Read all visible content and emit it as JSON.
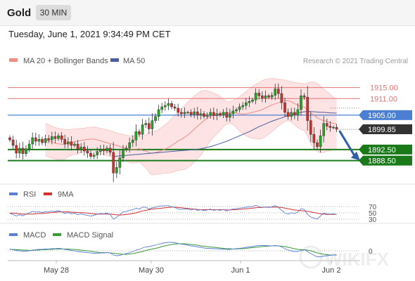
{
  "header": {
    "title": "Gold",
    "timeframe": "30 MIN"
  },
  "datetime": "Tuesday, June 1, 2021 9:34:49 PM CET",
  "credit": "Research © 2021 Trading Central",
  "watermark": "WIKIFX",
  "colors": {
    "resistance": "#e57373",
    "pivot": "#4a7fd4",
    "support": "#1a7a1a",
    "current": "#333333",
    "band_fill": "#fde3e3",
    "ma20": "#f28b82",
    "ma50": "#4a5c9e",
    "candle_up": "#26a526",
    "candle_down": "#d32f2f",
    "rsi": "#5b7fd6",
    "rsi_ma": "#d32f2f",
    "macd": "#5b7fd6",
    "macd_signal": "#3a9a3a",
    "arrow": "#2e5fa8"
  },
  "chart_data": [
    {
      "type": "candlestick",
      "legend": [
        "MA 20 + Bollinger Bands",
        "MA 50"
      ],
      "x_labels": [
        "May 28",
        "May 30",
        "Jun 1",
        "Jun 2"
      ],
      "levels": [
        {
          "value": 1915.0,
          "label": "1915.00",
          "kind": "resistance"
        },
        {
          "value": 1911.0,
          "label": "1911.00",
          "kind": "resistance"
        },
        {
          "value": 1905.0,
          "label": "1905.00",
          "kind": "pivot"
        },
        {
          "value": 1899.85,
          "label": "1899.85",
          "kind": "current"
        },
        {
          "value": 1892.5,
          "label": "1892.50",
          "kind": "support"
        },
        {
          "value": 1888.5,
          "label": "1888.50",
          "kind": "support"
        }
      ],
      "ylim": [
        1881,
        1920
      ],
      "close": [
        1896.0,
        1894.0,
        1891.2,
        1893.0,
        1891.0,
        1892.8,
        1894.5,
        1896.8,
        1895.5,
        1896.2,
        1895.0,
        1896.5,
        1896.0,
        1897.2,
        1896.5,
        1897.5,
        1896.2,
        1894.5,
        1895.3,
        1894.0,
        1894.5,
        1892.5,
        1893.4,
        1892.0,
        1891.2,
        1890.0,
        1890.5,
        1891.8,
        1892.5,
        1892.0,
        1893.0,
        1891.5,
        1884.0,
        1886.0,
        1889.5,
        1892.5,
        1893.0,
        1895.0,
        1896.0,
        1899.0,
        1898.0,
        1901.5,
        1902.0,
        1900.0,
        1903.0,
        1904.5,
        1907.0,
        1908.0,
        1908.5,
        1909.2,
        1908.0,
        1907.5,
        1906.0,
        1905.5,
        1906.0,
        1906.0,
        1905.2,
        1906.2,
        1905.0,
        1905.5,
        1904.5,
        1905.0,
        1906.0,
        1904.8,
        1905.5,
        1905.0,
        1906.0,
        1904.2,
        1905.5,
        1906.5,
        1907.0,
        1908.0,
        1908.5,
        1909.5,
        1910.0,
        1910.5,
        1913.0,
        1912.0,
        1911.2,
        1912.0,
        1911.5,
        1912.2,
        1914.5,
        1912.8,
        1909.5,
        1906.0,
        1904.5,
        1906.0,
        1905.0,
        1907.0,
        1912.0,
        1911.5,
        1903.0,
        1898.0,
        1895.0,
        1893.5,
        1897.5,
        1902.0,
        1901.0,
        1900.5,
        1900.6,
        1899.85
      ],
      "ma20": [
        1896.1,
        1895.6,
        1895.2,
        1894.8,
        1894.6,
        1894.4,
        1894.4,
        1894.8,
        1895.1,
        1895.4,
        1895.5,
        1895.8,
        1896.0,
        1896.2,
        1896.3,
        1896.3,
        1896.0,
        1895.7,
        1895.3,
        1895.0,
        1894.7,
        1894.3,
        1894.0,
        1893.6,
        1893.3,
        1893.0,
        1892.6,
        1892.5,
        1892.6,
        1892.8,
        1892.2,
        1891.9,
        1891.4,
        1891.2,
        1891.4,
        1891.7,
        1892.2,
        1892.7,
        1893.2,
        1894.0,
        1894.8,
        1895.6,
        1896.2,
        1896.9,
        1897.8,
        1898.8,
        1899.9,
        1901.0,
        1902.0,
        1903.0,
        1903.9,
        1904.6,
        1905.0,
        1905.3,
        1905.6,
        1905.7,
        1905.8,
        1905.9,
        1906.0,
        1905.7,
        1905.5,
        1905.4,
        1905.5,
        1905.7,
        1906.0,
        1906.3,
        1906.6,
        1907.0,
        1907.6,
        1908.1,
        1908.7,
        1909.1,
        1909.5,
        1909.9,
        1910.2,
        1910.2,
        1909.8,
        1909.2,
        1908.6,
        1908.1,
        1907.9,
        1906.9,
        1905.8,
        1904.9,
        1904.1,
        1903.4,
        1903.0,
        1902.7,
        1902.3,
        1902.0,
        1901.8
      ],
      "ma50": [
        1890.0,
        1890.1,
        1890.2,
        1890.3,
        1890.4,
        1890.5,
        1890.6,
        1890.7,
        1890.8,
        1890.9,
        1891.0,
        1891.1,
        1891.2,
        1891.3,
        1891.4,
        1891.5,
        1891.6,
        1891.7,
        1891.8,
        1891.9,
        1892.0,
        1892.1,
        1892.2,
        1892.3,
        1892.4,
        1892.5,
        1892.6,
        1892.8,
        1893.0,
        1893.3,
        1893.6,
        1893.9,
        1894.3,
        1894.7,
        1895.1,
        1895.5,
        1896.0,
        1896.5,
        1897.0,
        1897.5,
        1898.0,
        1898.5,
        1899.0,
        1899.6,
        1900.2,
        1900.8,
        1901.3,
        1901.8,
        1902.3,
        1902.8,
        1903.2,
        1903.6,
        1904.0,
        1904.4,
        1904.8,
        1905.2,
        1905.5,
        1905.8,
        1906.0,
        1906.2,
        1906.3,
        1906.3,
        1906.2,
        1906.1,
        1906.0,
        1906.0,
        1905.9,
        1905.8,
        1905.8,
        1905.7
      ],
      "bb_upper": [
        1902.0,
        1901.5,
        1901.0,
        1900.5,
        1900.2,
        1900.0,
        1899.8,
        1899.7,
        1899.8,
        1900.0,
        1900.1,
        1900.2,
        1900.3,
        1900.5,
        1900.6,
        1900.7,
        1900.5,
        1900.2,
        1900.0,
        1899.7,
        1899.4,
        1899.0,
        1898.6,
        1898.3,
        1898.0,
        1897.7,
        1897.5,
        1897.4,
        1897.5,
        1897.6,
        1897.4,
        1897.8,
        1898.6,
        1899.1,
        1899.3,
        1899.8,
        1900.6,
        1901.5,
        1902.5,
        1903.8,
        1905.0,
        1906.3,
        1907.3,
        1908.5,
        1909.7,
        1910.8,
        1911.9,
        1912.9,
        1913.6,
        1914.0,
        1913.8,
        1913.5,
        1913.0,
        1912.5,
        1911.8,
        1910.6,
        1909.9,
        1909.8,
        1910.4,
        1911.0,
        1911.7,
        1912.6,
        1913.5,
        1914.5,
        1915.4,
        1916.2,
        1916.9,
        1917.5,
        1918.0,
        1918.2,
        1918.4,
        1918.2,
        1918.0,
        1917.9,
        1917.7,
        1917.4,
        1917.1,
        1916.9,
        1916.7,
        1916.5,
        1916.4,
        1916.5,
        1917.0,
        1917.0,
        1916.5,
        1915.5,
        1914.5,
        1913.5,
        1912.5,
        1911.5,
        1910.8
      ],
      "bb_lower": [
        1890.2,
        1889.7,
        1889.4,
        1889.1,
        1889.0,
        1888.8,
        1889.0,
        1889.9,
        1890.4,
        1890.8,
        1890.9,
        1891.4,
        1891.7,
        1891.9,
        1892.0,
        1891.9,
        1891.5,
        1891.2,
        1890.6,
        1890.3,
        1890.0,
        1889.6,
        1889.4,
        1888.9,
        1888.6,
        1888.3,
        1887.7,
        1887.6,
        1887.7,
        1888.0,
        1887.0,
        1886.0,
        1884.2,
        1883.3,
        1883.5,
        1883.6,
        1883.8,
        1883.9,
        1883.9,
        1884.2,
        1884.6,
        1884.9,
        1885.1,
        1885.3,
        1885.9,
        1886.8,
        1887.9,
        1889.1,
        1890.4,
        1892.0,
        1894.0,
        1895.7,
        1897.0,
        1898.1,
        1899.4,
        1900.8,
        1901.7,
        1902.0,
        1901.6,
        1900.4,
        1899.3,
        1898.2,
        1897.5,
        1896.9,
        1896.6,
        1896.4,
        1896.3,
        1896.5,
        1897.2,
        1898.0,
        1899.0,
        1900.0,
        1901.0,
        1901.9,
        1902.7,
        1903.0,
        1902.5,
        1901.5,
        1900.5,
        1899.7,
        1899.4,
        1897.3,
        1894.6,
        1892.8,
        1891.7,
        1891.3,
        1891.5,
        1891.9,
        1892.1,
        1892.5,
        1892.8
      ]
    },
    {
      "type": "line",
      "legend": [
        "RSI",
        "9MA"
      ],
      "yticks": [
        70,
        50,
        30
      ],
      "ylim": [
        0,
        100
      ],
      "rsi": [
        48,
        45,
        40,
        44,
        41,
        46,
        50,
        55,
        52,
        54,
        51,
        54,
        53,
        56,
        54,
        57,
        53,
        48,
        51,
        47,
        49,
        44,
        47,
        44,
        42,
        40,
        42,
        46,
        48,
        47,
        49,
        45,
        30,
        36,
        45,
        53,
        54,
        58,
        60,
        65,
        62,
        68,
        68,
        62,
        66,
        68,
        71,
        72,
        72,
        73,
        69,
        67,
        62,
        61,
        62,
        62,
        59,
        62,
        58,
        60,
        57,
        59,
        62,
        58,
        60,
        58,
        61,
        56,
        60,
        62,
        63,
        65,
        66,
        68,
        69,
        70,
        74,
        70,
        67,
        69,
        67,
        69,
        73,
        67,
        58,
        49,
        46,
        50,
        48,
        53,
        63,
        61,
        45,
        37,
        33,
        31,
        40,
        49,
        47,
        46,
        47,
        45
      ],
      "ma9": [
        49,
        49,
        48,
        47,
        46,
        46,
        46,
        46,
        47,
        48,
        48,
        49,
        50,
        51,
        52,
        53,
        53,
        53,
        53,
        52,
        52,
        51,
        51,
        50,
        49,
        48,
        47,
        46,
        46,
        46,
        46,
        46,
        45,
        44,
        43,
        44,
        45,
        46,
        48,
        50,
        53,
        56,
        58,
        60,
        62,
        63,
        64,
        65,
        66,
        67,
        68,
        68,
        67,
        66,
        65,
        64,
        63,
        62,
        61,
        60,
        60,
        60,
        60,
        60,
        60,
        60,
        60,
        59,
        59,
        60,
        60,
        61,
        62,
        63,
        64,
        65,
        66,
        67,
        67,
        68,
        68,
        68,
        68,
        68,
        67,
        65,
        63,
        61,
        59,
        58,
        57,
        56,
        55,
        53,
        51,
        49,
        47,
        46,
        45,
        45,
        45,
        45
      ]
    },
    {
      "type": "line",
      "legend": [
        "MACD",
        "MACD Signal"
      ],
      "yticks": [
        0
      ],
      "ylim": [
        -3,
        3
      ],
      "macd": [
        0.5,
        0.3,
        0.1,
        0.0,
        -0.1,
        -0.1,
        0.0,
        0.2,
        0.3,
        0.4,
        0.4,
        0.5,
        0.5,
        0.6,
        0.6,
        0.7,
        0.6,
        0.4,
        0.3,
        0.1,
        0.0,
        -0.2,
        -0.3,
        -0.4,
        -0.5,
        -0.6,
        -0.7,
        -0.7,
        -0.6,
        -0.6,
        -0.5,
        -0.6,
        -1.2,
        -1.4,
        -1.3,
        -1.0,
        -0.8,
        -0.5,
        -0.2,
        0.2,
        0.4,
        0.8,
        1.1,
        1.2,
        1.4,
        1.6,
        1.9,
        2.1,
        2.3,
        2.4,
        2.4,
        2.3,
        2.1,
        1.9,
        1.8,
        1.6,
        1.4,
        1.3,
        1.1,
        1.0,
        0.8,
        0.7,
        0.7,
        0.6,
        0.6,
        0.5,
        0.5,
        0.4,
        0.4,
        0.5,
        0.6,
        0.7,
        0.8,
        1.0,
        1.1,
        1.2,
        1.4,
        1.5,
        1.5,
        1.5,
        1.4,
        1.4,
        1.5,
        1.4,
        1.1,
        0.6,
        0.2,
        0.0,
        -0.2,
        -0.2,
        0.1,
        0.3,
        -0.2,
        -0.8,
        -1.3,
        -1.7,
        -1.7,
        -1.5,
        -1.4,
        -1.3,
        -1.2,
        -1.1
      ],
      "signal": [
        0.4,
        0.4,
        0.3,
        0.3,
        0.2,
        0.2,
        0.1,
        0.1,
        0.2,
        0.2,
        0.3,
        0.3,
        0.4,
        0.4,
        0.5,
        0.5,
        0.5,
        0.5,
        0.5,
        0.4,
        0.4,
        0.3,
        0.2,
        0.1,
        0.0,
        -0.1,
        -0.3,
        -0.4,
        -0.5,
        -0.5,
        -0.5,
        -0.6,
        -0.7,
        -0.8,
        -0.9,
        -1.0,
        -1.0,
        -0.9,
        -0.8,
        -0.6,
        -0.4,
        -0.2,
        0.1,
        0.3,
        0.5,
        0.7,
        0.9,
        1.2,
        1.4,
        1.6,
        1.8,
        1.9,
        2.0,
        2.0,
        2.0,
        1.9,
        1.8,
        1.7,
        1.6,
        1.4,
        1.3,
        1.2,
        1.1,
        1.0,
        0.9,
        0.8,
        0.7,
        0.6,
        0.6,
        0.5,
        0.5,
        0.6,
        0.6,
        0.7,
        0.8,
        0.9,
        1.0,
        1.1,
        1.2,
        1.3,
        1.3,
        1.4,
        1.4,
        1.4,
        1.3,
        1.2,
        1.0,
        0.8,
        0.6,
        0.4,
        0.3,
        0.3,
        0.2,
        0.0,
        -0.3,
        -0.6,
        -0.8,
        -1.0,
        -1.1,
        -1.2,
        -1.2,
        -1.2
      ]
    }
  ]
}
